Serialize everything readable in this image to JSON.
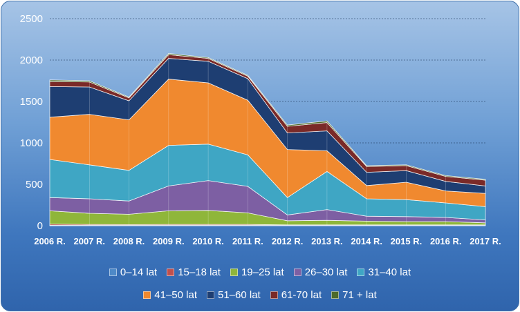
{
  "chart_data": {
    "type": "area",
    "stacked": true,
    "title": "",
    "xlabel": "",
    "ylabel": "",
    "ylim": [
      0,
      2500
    ],
    "yticks": [
      "0",
      "500",
      "1000",
      "1500",
      "2000",
      "2500"
    ],
    "categories": [
      "2006 R.",
      "2007 R.",
      "2008 R.",
      "2009 R.",
      "2010 R.",
      "2011 R.",
      "2012 R.",
      "2013 R.",
      "2014 R.",
      "2015 R.",
      "2016 R.",
      "2017 R."
    ],
    "series": [
      {
        "name": "0–14 lat",
        "color": "#4e89c7",
        "values": [
          5,
          5,
          5,
          5,
          5,
          5,
          5,
          5,
          5,
          5,
          5,
          5
        ]
      },
      {
        "name": "15–18 lat",
        "color": "#c0504d",
        "values": [
          15,
          10,
          8,
          10,
          10,
          10,
          5,
          5,
          5,
          5,
          5,
          5
        ]
      },
      {
        "name": "19–25 lat",
        "color": "#8fb63a",
        "values": [
          160,
          135,
          125,
          165,
          170,
          140,
          50,
          55,
          45,
          40,
          40,
          25
        ]
      },
      {
        "name": "26–30 lat",
        "color": "#7d5fa3",
        "values": [
          160,
          175,
          160,
          300,
          360,
          320,
          70,
          130,
          60,
          60,
          50,
          35
        ]
      },
      {
        "name": "31–40 lat",
        "color": "#3fa6c4",
        "values": [
          460,
          410,
          370,
          490,
          440,
          380,
          210,
          460,
          210,
          205,
          175,
          160
        ]
      },
      {
        "name": "41–50 lat",
        "color": "#f0892f",
        "values": [
          510,
          610,
          610,
          800,
          740,
          660,
          580,
          250,
          160,
          210,
          145,
          160
        ]
      },
      {
        "name": "51–60 lat",
        "color": "#1e3e72",
        "values": [
          370,
          330,
          230,
          250,
          260,
          260,
          200,
          240,
          160,
          140,
          115,
          90
        ]
      },
      {
        "name": "61-70 lat",
        "color": "#7a2a28",
        "values": [
          60,
          60,
          35,
          45,
          35,
          30,
          80,
          100,
          70,
          60,
          60,
          70
        ]
      },
      {
        "name": "71 + lat",
        "color": "#4d6b2a",
        "values": [
          20,
          15,
          10,
          15,
          10,
          10,
          15,
          20,
          10,
          10,
          10,
          10
        ]
      }
    ],
    "grid": true,
    "legend_position": "bottom"
  }
}
